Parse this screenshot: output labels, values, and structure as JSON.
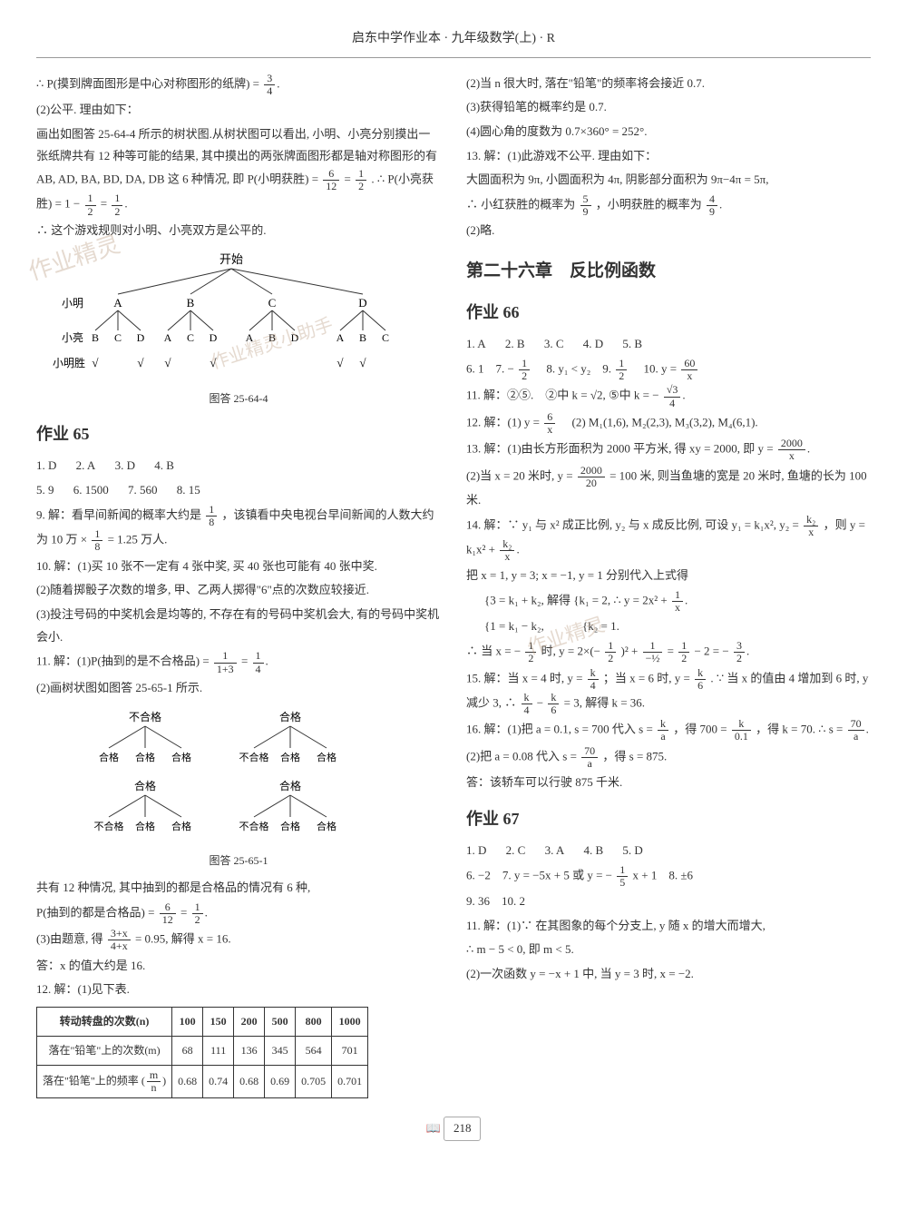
{
  "header": "启东中学作业本 · 九年级数学(上) · R",
  "page_number": "218",
  "watermarks": [
    "作业精灵",
    "作业精灵小助手",
    "作业精灵"
  ],
  "left": {
    "p1": "∴ P(摸到牌面图形是中心对称图形的纸牌) = ",
    "frac_3_4_num": "3",
    "frac_3_4_den": "4",
    "p2": "(2)公平. 理由如下：",
    "p3": "画出如图答 25-64-4 所示的树状图.从树状图可以看出, 小明、小亮分别摸出一张纸牌共有 12 种等可能的结果, 其中摸出的两张牌面图形都是轴对称图形的有 AB, AD, BA, BD, DA, DB 这 6 种情况, 即 P(小明获胜) = ",
    "frac_6_12_num": "6",
    "frac_6_12_den": "12",
    "eq": " = ",
    "frac_1_2a_num": "1",
    "frac_1_2a_den": "2",
    "p3b": ". ∴ P(小亮获胜) = 1 − ",
    "frac_1_2b_num": "1",
    "frac_1_2b_den": "2",
    "frac_1_2c_num": "1",
    "frac_1_2c_den": "2",
    "p4": "∴ 这个游戏规则对小明、小亮双方是公平的.",
    "tree1": {
      "start": "开始",
      "row1_label": "小明",
      "row1": [
        "A",
        "B",
        "C",
        "D"
      ],
      "row2_label": "小亮",
      "row2": [
        "B",
        "C",
        "D",
        "A",
        "C",
        "D",
        "A",
        "B",
        "D",
        "A",
        "B",
        "C"
      ],
      "row3_label": "小明胜",
      "row3": [
        "√",
        "",
        "√",
        "√",
        "",
        "√",
        "",
        "",
        "",
        "√",
        "√",
        ""
      ],
      "caption": "图答 25-64-4"
    },
    "hw65_title": "作业 65",
    "hw65_row1": [
      "1. D",
      "2. A",
      "3. D",
      "4. B"
    ],
    "hw65_row2": [
      "5. 9",
      "6. 1500",
      "7. 560",
      "8. 15"
    ],
    "q9a": "9. 解：看早间新闻的概率大约是 ",
    "frac_1_8_num": "1",
    "frac_1_8_den": "8",
    "q9b": "，该镇看中央电视台早间新闻的人数大约为 10 万 × ",
    "q9c": " = 1.25 万人.",
    "q10_1": "10. 解：(1)买 10 张不一定有 4 张中奖, 买 40 张也可能有 40 张中奖.",
    "q10_2": "(2)随着掷骰子次数的增多, 甲、乙两人掷得\"6\"点的次数应较接近.",
    "q10_3": "(3)投注号码的中奖机会是均等的, 不存在有的号码中奖机会大, 有的号码中奖机会小.",
    "q11_1a": "11. 解：(1)P(抽到的是不合格品) = ",
    "frac_1_13_num": "1",
    "frac_1_13_den": "1+3",
    "frac_1_4_num": "1",
    "frac_1_4_den": "4",
    "q11_2": "(2)画树状图如图答 25-65-1 所示.",
    "tree2": {
      "top": [
        "不合格",
        "合格"
      ],
      "mid_left": [
        "合格",
        "合格",
        "合格"
      ],
      "mid_right": [
        "不合格",
        "合格",
        "合格"
      ],
      "row2_top": [
        "合格",
        "合格"
      ],
      "row2_left": [
        "不合格",
        "合格",
        "合格"
      ],
      "row2_right": [
        "不合格",
        "合格",
        "合格"
      ],
      "caption": "图答 25-65-1"
    },
    "q11_3a": "共有 12 种情况, 其中抽到的都是合格品的情况有 6 种,",
    "q11_3b": "P(抽到的都是合格品) = ",
    "q11_4a": "(3)由题意, 得 ",
    "frac_3x_num": "3+x",
    "frac_3x_den": "4+x",
    "q11_4b": " = 0.95, 解得 x = 16.",
    "q11_5": "答：x 的值大约是 16.",
    "q12_1": "12. 解：(1)见下表.",
    "table": {
      "headers": [
        "转动转盘的次数(n)",
        "100",
        "150",
        "200",
        "500",
        "800",
        "1000"
      ],
      "row1": [
        "落在\"铅笔\"上的次数(m)",
        "68",
        "111",
        "136",
        "345",
        "564",
        "701"
      ],
      "row2_label": "落在\"铅笔\"上的频率",
      "row2_frac_num": "m",
      "row2_frac_den": "n",
      "row2": [
        "0.68",
        "0.74",
        "0.68",
        "0.69",
        "0.705",
        "0.701"
      ]
    }
  },
  "right": {
    "q12_2": "(2)当 n 很大时, 落在\"铅笔\"的频率将会接近 0.7.",
    "q12_3": "(3)获得铅笔的概率约是 0.7.",
    "q12_4": "(4)圆心角的度数为 0.7×360° = 252°.",
    "q13_1": "13. 解：(1)此游戏不公平. 理由如下：",
    "q13_2": "大圆面积为 9π, 小圆面积为 4π, 阴影部分面积为 9π−4π = 5π,",
    "q13_3a": "∴ 小红获胜的概率为 ",
    "frac_5_9_num": "5",
    "frac_5_9_den": "9",
    "q13_3b": "，小明获胜的概率为 ",
    "frac_4_9_num": "4",
    "frac_4_9_den": "9",
    "q13_4": "(2)略.",
    "chapter": "第二十六章　反比例函数",
    "hw66_title": "作业 66",
    "hw66_row1": [
      "1. A",
      "2. B",
      "3. C",
      "4. D",
      "5. B"
    ],
    "hw66_row2a": "6. 1　7. −",
    "frac_1_2d_num": "1",
    "frac_1_2d_den": "2",
    "hw66_row2b": "　8. y₁ < y₂　9. ",
    "hw66_row2c": "　10. y = ",
    "frac_60_x_num": "60",
    "frac_60_x_den": "x",
    "q11r_a": "11. 解：②⑤.　②中 k = √2, ⑤中 k = −",
    "frac_r3_4_num": "√3",
    "frac_r3_4_den": "4",
    "q12r_a": "12. 解：(1) y = ",
    "frac_6_x_num": "6",
    "frac_6_x_den": "x",
    "q12r_b": "　(2) M₁(1,6), M₂(2,3), M₃(3,2), M₄(6,1).",
    "q13r_a": "13. 解：(1)由长方形面积为 2000 平方米, 得 xy = 2000, 即 y = ",
    "frac_2000_x_num": "2000",
    "frac_2000_x_den": "x",
    "q13r_b": "(2)当 x = 20 米时, y = ",
    "frac_2000_20_num": "2000",
    "frac_2000_20_den": "20",
    "q13r_c": " = 100 米, 则当鱼塘的宽是 20 米时, 鱼塘的长为 100 米.",
    "q14_a": "14. 解：∵ y₁ 与 x² 成正比例, y₂ 与 x 成反比例, 可设 y₁ = k₁x², y₂ = ",
    "frac_k2_x_num": "k₂",
    "frac_k2_x_den": "x",
    "q14_b": "，则 y = k₁x² + ",
    "q14_c": "把 x = 1, y = 3; x = −1, y = 1 分别代入上式得",
    "q14_sys1": "3 = k₁ + k₂,",
    "q14_sys2": "1 = k₁ − k₂,",
    "q14_sol": "解得",
    "q14_sys3": "k₁ = 2,",
    "q14_sys4": "k₂ = 1.",
    "q14_d": "∴ y = 2x² + ",
    "frac_1_x_num": "1",
    "frac_1_x_den": "x",
    "q14_e": "∴ 当 x = −",
    "q14_f": " 时, y = 2×(−",
    "q14_g": ")² + ",
    "frac_1_neg_num": "1",
    "frac_1_neg_den": "−½",
    "q14_h": " = ",
    "q14_i": " − 2 = −",
    "frac_3_2_num": "3",
    "frac_3_2_den": "2",
    "q15_a": "15. 解：当 x = 4 时, y = ",
    "frac_k_4_num": "k",
    "frac_k_4_den": "4",
    "q15_b": "；当 x = 6 时, y = ",
    "frac_k_6_num": "k",
    "frac_k_6_den": "6",
    "q15_c": ". ∵ 当 x 的值由 4 增加到 6 时, y 减少 3, ∴ ",
    "q15_d": " − ",
    "q15_e": " = 3, 解得 k = 36.",
    "q16_a": "16. 解：(1)把 a = 0.1, s = 700 代入 s = ",
    "frac_k_a_num": "k",
    "frac_k_a_den": "a",
    "q16_b": "，得 700 = ",
    "frac_k_01_num": "k",
    "frac_k_01_den": "0.1",
    "q16_c": "，得 k = 70. ∴ s = ",
    "frac_70_a_num": "70",
    "frac_70_a_den": "a",
    "q16_d": "(2)把 a = 0.08 代入 s = ",
    "q16_e": "，得 s = 875.",
    "q16_f": "答：该轿车可以行驶 875 千米.",
    "hw67_title": "作业 67",
    "hw67_row1": [
      "1. D",
      "2. C",
      "3. A",
      "4. B",
      "5. D"
    ],
    "hw67_row2a": "6. −2　7. y = −5x + 5 或 y = −",
    "frac_1_5_num": "1",
    "frac_1_5_den": "5",
    "hw67_row2b": "x + 1　8. ±6",
    "hw67_row3": "9. 36　10. 2",
    "q11_67a": "11. 解：(1)∵ 在其图象的每个分支上, y 随 x 的增大而增大,",
    "q11_67b": "∴ m − 5 < 0, 即 m < 5.",
    "q11_67c": "(2)一次函数 y = −x + 1 中, 当 y = 3 时, x = −2."
  }
}
